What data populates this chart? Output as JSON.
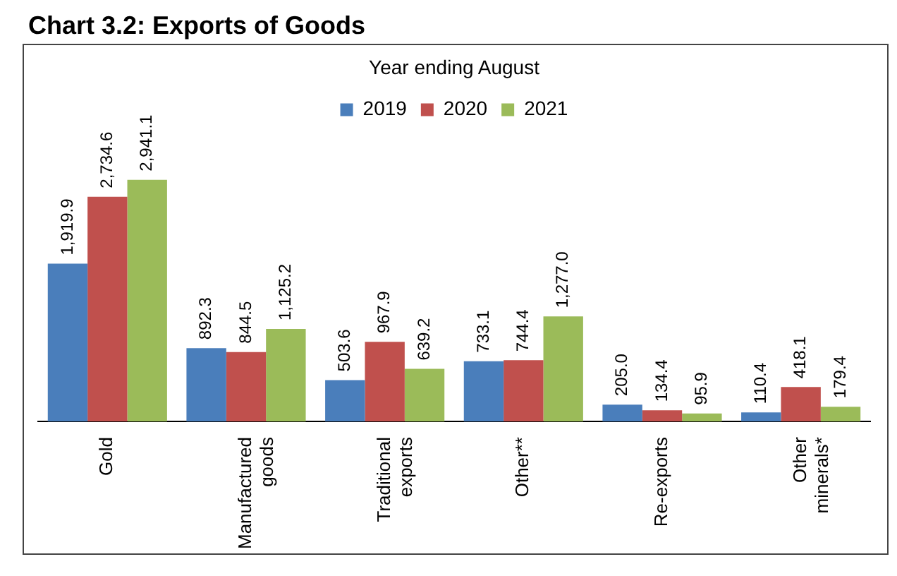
{
  "chart_data": {
    "type": "bar",
    "title": "Chart 3.2: Exports of Goods",
    "subtitle": "Year ending August",
    "categories": [
      "Gold",
      "Manufactured goods",
      "Traditional exports",
      "Other**",
      "Re-exports",
      "Other minerals*"
    ],
    "series": [
      {
        "name": "2019",
        "color": "#4a7ebb",
        "values": [
          1919.9,
          892.3,
          503.6,
          733.1,
          205.0,
          110.4
        ],
        "value_labels": [
          "1,919.9",
          "892.3",
          "503.6",
          "733.1",
          "205.0",
          "110.4"
        ]
      },
      {
        "name": "2020",
        "color": "#c0504d",
        "values": [
          2734.6,
          844.5,
          967.9,
          744.4,
          134.4,
          418.1
        ],
        "value_labels": [
          "2,734.6",
          "844.5",
          "967.9",
          "744.4",
          "134.4",
          "418.1"
        ]
      },
      {
        "name": "2021",
        "color": "#9bbb59",
        "values": [
          2941.1,
          1125.2,
          639.2,
          1277.0,
          95.9,
          179.4
        ],
        "value_labels": [
          "2,941.1",
          "1,125.2",
          "639.2",
          "1,277.0",
          "95.9",
          "179.4"
        ]
      }
    ],
    "legend": "top",
    "grid": false
  }
}
